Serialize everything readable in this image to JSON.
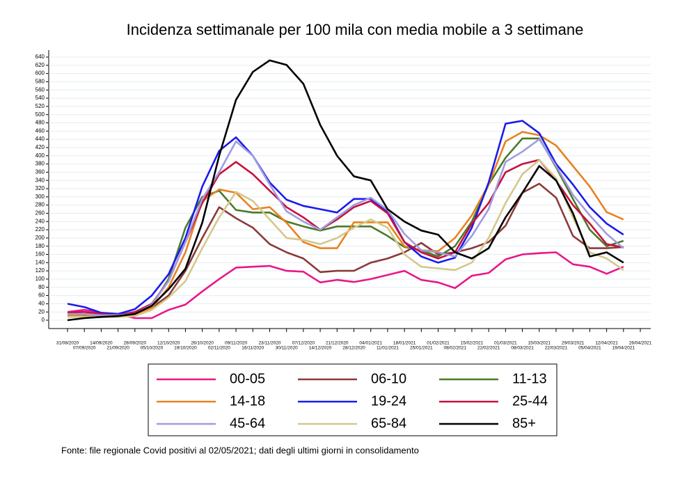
{
  "chart_data": {
    "type": "line",
    "title": "Incidenza settimanale per 100 mila con media mobile a 3 settimane",
    "note": "Fonte: file regionale Covid positivi al 02/05/2021; dati degli ultimi giorni in consolidamento",
    "categories": [
      "31/08/2020",
      "07/09/2020",
      "14/09/2020",
      "21/09/2020",
      "28/09/2020",
      "05/10/2020",
      "12/10/2020",
      "19/10/2020",
      "26/10/2020",
      "02/11/2020",
      "09/11/2020",
      "16/11/2020",
      "23/11/2020",
      "30/11/2020",
      "07/12/2020",
      "14/12/2020",
      "21/12/2020",
      "28/12/2020",
      "04/01/2021",
      "11/01/2021",
      "18/01/2021",
      "25/01/2021",
      "01/02/2021",
      "08/02/2021",
      "15/02/2021",
      "22/02/2021",
      "01/03/2021",
      "08/03/2021",
      "15/03/2021",
      "22/03/2021",
      "29/03/2021",
      "05/04/2021",
      "12/04/2021",
      "19/04/2021",
      "26/04/2021"
    ],
    "ylim": [
      0,
      640
    ],
    "yticks": [
      0,
      20,
      40,
      60,
      80,
      100,
      120,
      140,
      160,
      180,
      200,
      220,
      240,
      260,
      280,
      300,
      320,
      340,
      360,
      380,
      400,
      420,
      440,
      460,
      480,
      500,
      520,
      540,
      560,
      580,
      600,
      620,
      640
    ],
    "grid": true,
    "legend": "bottom",
    "series": [
      {
        "name": "00-05",
        "color": "#e8178a",
        "values": [
          20,
          25,
          18,
          15,
          5,
          5,
          25,
          38,
          70,
          100,
          128,
          130,
          132,
          120,
          118,
          92,
          98,
          93,
          100,
          110,
          120,
          98,
          92,
          78,
          108,
          115,
          148,
          160,
          163,
          165,
          136,
          130,
          113,
          130,
          null
        ]
      },
      {
        "name": "06-10",
        "color": "#8b3a3a",
        "values": [
          15,
          12,
          10,
          10,
          15,
          30,
          60,
          120,
          200,
          275,
          248,
          225,
          185,
          165,
          150,
          117,
          120,
          120,
          140,
          150,
          165,
          188,
          160,
          165,
          175,
          190,
          230,
          310,
          332,
          298,
          205,
          175,
          175,
          178,
          null
        ]
      },
      {
        "name": "11-13",
        "color": "#4a7a2a",
        "values": [
          10,
          10,
          10,
          10,
          18,
          35,
          100,
          225,
          300,
          315,
          268,
          262,
          262,
          240,
          228,
          218,
          228,
          228,
          228,
          205,
          178,
          170,
          155,
          180,
          240,
          330,
          395,
          442,
          442,
          372,
          295,
          220,
          180,
          193,
          null
        ]
      },
      {
        "name": "14-18",
        "color": "#e8821e",
        "values": [
          12,
          10,
          10,
          10,
          15,
          30,
          80,
          165,
          290,
          318,
          310,
          270,
          275,
          237,
          190,
          175,
          175,
          238,
          238,
          238,
          180,
          170,
          168,
          200,
          255,
          330,
          435,
          458,
          450,
          425,
          375,
          325,
          263,
          245,
          null
        ]
      },
      {
        "name": "19-24",
        "color": "#1a1aee",
        "values": [
          40,
          32,
          18,
          15,
          27,
          60,
          112,
          200,
          325,
          412,
          445,
          400,
          335,
          293,
          278,
          270,
          262,
          295,
          295,
          265,
          190,
          155,
          140,
          152,
          225,
          335,
          478,
          485,
          455,
          380,
          330,
          275,
          235,
          208,
          null
        ]
      },
      {
        "name": "25-44",
        "color": "#c8103c",
        "values": [
          18,
          20,
          15,
          12,
          20,
          40,
          95,
          190,
          285,
          355,
          385,
          355,
          315,
          275,
          250,
          220,
          245,
          275,
          290,
          260,
          190,
          165,
          150,
          165,
          235,
          285,
          360,
          380,
          390,
          340,
          280,
          235,
          185,
          177,
          null
        ]
      },
      {
        "name": "45-64",
        "color": "#a09ce0",
        "values": [
          15,
          15,
          12,
          12,
          15,
          38,
          95,
          190,
          295,
          360,
          435,
          400,
          330,
          265,
          240,
          220,
          250,
          280,
          298,
          268,
          210,
          170,
          165,
          155,
          205,
          270,
          385,
          410,
          440,
          375,
          305,
          255,
          210,
          175,
          null
        ]
      },
      {
        "name": "65-84",
        "color": "#d4c88a",
        "values": [
          8,
          8,
          8,
          8,
          10,
          25,
          55,
          95,
          175,
          250,
          312,
          290,
          245,
          200,
          195,
          185,
          200,
          225,
          245,
          225,
          160,
          130,
          126,
          122,
          140,
          200,
          285,
          355,
          390,
          345,
          250,
          165,
          150,
          122,
          null
        ]
      },
      {
        "name": "85+",
        "color": "#000000",
        "values": [
          0,
          5,
          8,
          10,
          15,
          35,
          75,
          125,
          237,
          400,
          536,
          604,
          632,
          621,
          575,
          475,
          400,
          350,
          340,
          270,
          240,
          218,
          208,
          165,
          150,
          175,
          250,
          310,
          375,
          340,
          260,
          155,
          165,
          140,
          null
        ]
      }
    ]
  }
}
